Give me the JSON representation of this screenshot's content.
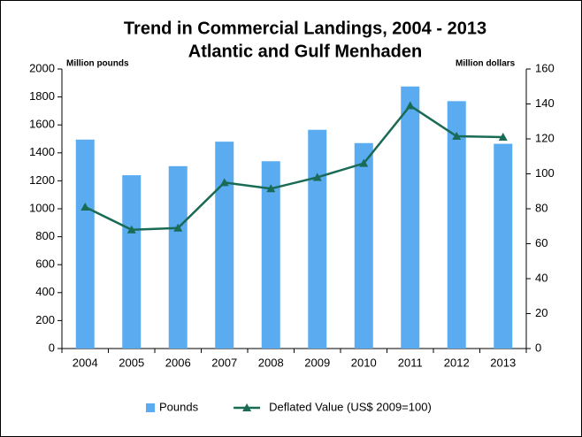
{
  "chart_data": {
    "type": "bar_line",
    "title": "Trend in Commercial Landings, 2004 - 2013",
    "subtitle": "Atlantic and Gulf Menhaden",
    "y_label": "Million pounds",
    "y2_label": "Million dollars",
    "categories": [
      "2004",
      "2005",
      "2006",
      "2007",
      "2008",
      "2009",
      "2010",
      "2011",
      "2012",
      "2013"
    ],
    "series": [
      {
        "name": "Pounds",
        "color": "#5aabf0",
        "kind": "bar",
        "values": [
          1495,
          1240,
          1305,
          1480,
          1340,
          1565,
          1470,
          1875,
          1770,
          1465
        ]
      },
      {
        "name": "Deflated Value (US$ 2009=100)",
        "color": "#1a6b55",
        "kind": "line",
        "axis": "y2",
        "values": [
          81,
          68,
          69,
          95,
          91.5,
          98,
          106,
          139,
          121.5,
          121
        ]
      }
    ],
    "ylim": [
      0,
      2000
    ],
    "yticks": [
      0,
      200,
      400,
      600,
      800,
      1000,
      1200,
      1400,
      1600,
      1800,
      2000
    ],
    "y2lim": [
      0,
      160
    ],
    "y2ticks": [
      0,
      20,
      40,
      60,
      80,
      100,
      120,
      140,
      160
    ]
  }
}
